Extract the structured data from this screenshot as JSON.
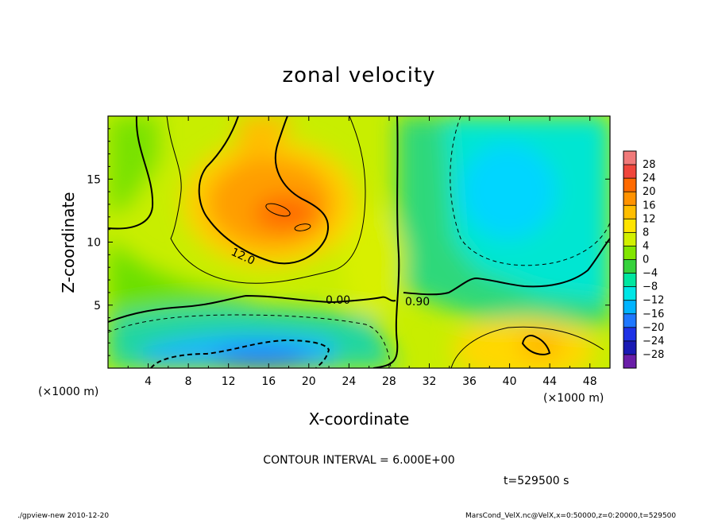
{
  "chart_data": {
    "type": "heatmap",
    "title": "zonal velocity",
    "xlabel": "X-coordinate",
    "ylabel": "Z-coordinate",
    "x_unit_label": "(×1000 m)",
    "z_unit_label": "(×1000 m)",
    "xlim": [
      0,
      50
    ],
    "ylim": [
      0,
      20
    ],
    "x_ticks": [
      "4",
      "8",
      "12",
      "16",
      "20",
      "24",
      "28",
      "32",
      "36",
      "40",
      "44",
      "48"
    ],
    "y_ticks": [
      "5",
      "10",
      "15"
    ],
    "colorbar_ticks": [
      "28",
      "24",
      "20",
      "16",
      "12",
      "8",
      "4",
      "0",
      "−4",
      "−8",
      "−12",
      "−16",
      "−20",
      "−24",
      "−28"
    ],
    "colorbar_colors": [
      "#f07a7a",
      "#f0463c",
      "#ff6a00",
      "#ff9200",
      "#ffbe00",
      "#ffe400",
      "#d2f000",
      "#82e600",
      "#36d23c",
      "#00e6a0",
      "#00e6e6",
      "#00b4ff",
      "#1f78ff",
      "#1e32e6",
      "#1a1ab4",
      "#6a1ea8"
    ],
    "contour_labels": [
      "12.0",
      "0.00",
      "0.90"
    ],
    "contour_interval_text": "CONTOUR INTERVAL = 6.000E+00",
    "time_text": "t=529500 s",
    "footer_left": "./gpview-new   2010-12-20",
    "footer_right": "MarsCond_VelX.nc@VelX,x=0:50000,z=0:20000,t=529500",
    "features": [
      {
        "kind": "positive",
        "x": 16,
        "z": 12,
        "value": 20
      },
      {
        "kind": "positive",
        "x": 42,
        "z": 2,
        "value": 12
      },
      {
        "kind": "negative",
        "x": 16,
        "z": 1,
        "value": -14
      },
      {
        "kind": "negative",
        "x": 41,
        "z": 14,
        "value": -10
      }
    ]
  }
}
